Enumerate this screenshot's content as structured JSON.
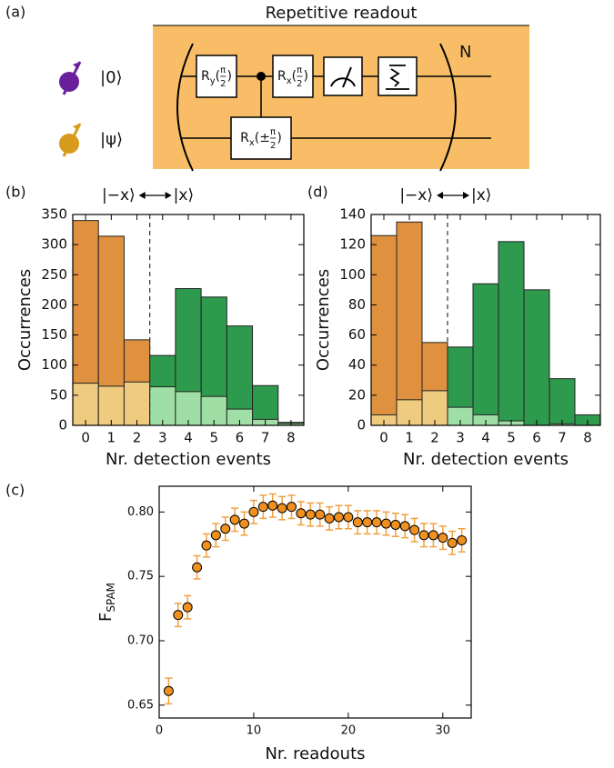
{
  "panel_a": {
    "label": "(a)",
    "title": "Repetitive readout",
    "inputs": [
      "|0⟩",
      "|ψ⟩"
    ],
    "repeat": "N",
    "gates": [
      {
        "base": "R",
        "sub": "y",
        "open": "(",
        "num": "π",
        "den": "2",
        "close": ")"
      },
      {
        "base": "R",
        "sub": "x",
        "open": "(",
        "num": "π",
        "den": "2",
        "close": ")"
      },
      {
        "base": "R",
        "sub": "x",
        "open": "(±",
        "num": "π",
        "den": "2",
        "close": ")"
      }
    ]
  },
  "chart_data": [
    {
      "type": "histogram",
      "panel_label": "(b)",
      "xlabel": "Nr. detection events",
      "ylabel": "Occurrences",
      "annotations": [
        "|−x⟩",
        "|x⟩"
      ],
      "threshold": 2.5,
      "bins": [
        -0.5,
        0.5,
        1.5,
        2.5,
        3.5,
        4.5,
        5.5,
        6.5,
        7.5,
        8.5
      ],
      "series": [
        {
          "colors": [
            "#e0913f",
            "#e0913f",
            "#e0913f",
            "#2e9a4d",
            "#2e9a4d",
            "#2e9a4d",
            "#2e9a4d",
            "#2e9a4d",
            "#2e9a4d"
          ],
          "values": [
            340,
            314,
            142,
            116,
            227,
            213,
            165,
            66,
            5
          ]
        },
        {
          "colors": [
            "#eecb7e",
            "#eecb7e",
            "#eecb7e",
            "#9fdfa5",
            "#9fdfa5",
            "#9fdfa5",
            "#9fdfa5",
            "#9fdfa5",
            "#9fdfa5"
          ],
          "values": [
            70,
            65,
            72,
            64,
            56,
            48,
            27,
            10,
            3
          ]
        }
      ],
      "xlim": [
        -0.5,
        8.5
      ],
      "xticks": [
        0,
        1,
        2,
        3,
        4,
        5,
        6,
        7,
        8
      ],
      "ylim": [
        0,
        350
      ],
      "yticks": [
        0,
        50,
        100,
        150,
        200,
        250,
        300,
        350
      ]
    },
    {
      "type": "histogram",
      "panel_label": "(d)",
      "xlabel": "Nr. detection events",
      "ylabel": "Occurrences",
      "annotations": [
        "|−x⟩",
        "|x⟩"
      ],
      "threshold": 2.5,
      "bins": [
        -0.5,
        0.5,
        1.5,
        2.5,
        3.5,
        4.5,
        5.5,
        6.5,
        7.5,
        8.5
      ],
      "series": [
        {
          "colors": [
            "#e0913f",
            "#e0913f",
            "#e0913f",
            "#2e9a4d",
            "#2e9a4d",
            "#2e9a4d",
            "#2e9a4d",
            "#2e9a4d",
            "#2e9a4d"
          ],
          "values": [
            126,
            135,
            55,
            52,
            94,
            122,
            90,
            31,
            7
          ]
        },
        {
          "colors": [
            "#eecb7e",
            "#eecb7e",
            "#eecb7e",
            "#9fdfa5",
            "#9fdfa5",
            "#9fdfa5",
            "#9fdfa5",
            "#9fdfa5",
            "#9fdfa5"
          ],
          "values": [
            7,
            17,
            23,
            12,
            7,
            3,
            0,
            1,
            0
          ]
        }
      ],
      "xlim": [
        -0.5,
        8.5
      ],
      "xticks": [
        0,
        1,
        2,
        3,
        4,
        5,
        6,
        7,
        8
      ],
      "ylim": [
        0,
        140
      ],
      "yticks": [
        0,
        20,
        40,
        60,
        80,
        100,
        120,
        140
      ]
    },
    {
      "type": "scatter",
      "panel_label": "(c)",
      "xlabel": "Nr. readouts",
      "ylabel": "F",
      "ylabel_sub": "SPAM",
      "color": "#f0901e",
      "error_color": "#f0a040",
      "x": [
        1,
        2,
        3,
        4,
        5,
        6,
        7,
        8,
        9,
        10,
        11,
        12,
        13,
        14,
        15,
        16,
        17,
        18,
        19,
        20,
        21,
        22,
        23,
        24,
        25,
        26,
        27,
        28,
        29,
        30,
        31,
        32
      ],
      "values": [
        0.661,
        0.72,
        0.726,
        0.757,
        0.774,
        0.782,
        0.787,
        0.794,
        0.791,
        0.8,
        0.804,
        0.805,
        0.803,
        0.804,
        0.799,
        0.798,
        0.798,
        0.795,
        0.796,
        0.796,
        0.792,
        0.792,
        0.792,
        0.791,
        0.79,
        0.789,
        0.786,
        0.782,
        0.782,
        0.78,
        0.776,
        0.778
      ],
      "errors": [
        0.01,
        0.009,
        0.009,
        0.009,
        0.009,
        0.009,
        0.009,
        0.009,
        0.009,
        0.009,
        0.009,
        0.009,
        0.009,
        0.009,
        0.009,
        0.009,
        0.009,
        0.009,
        0.009,
        0.009,
        0.009,
        0.009,
        0.009,
        0.009,
        0.009,
        0.009,
        0.009,
        0.009,
        0.009,
        0.009,
        0.009,
        0.009
      ],
      "xlim": [
        0,
        33
      ],
      "xticks": [
        0,
        10,
        20,
        30
      ],
      "ylim": [
        0.64,
        0.82
      ],
      "yticks": [
        0.65,
        {
          "value": 0.7,
          "label": "0.70"
        },
        0.75,
        {
          "value": 0.8,
          "label": "0.80"
        }
      ]
    }
  ]
}
